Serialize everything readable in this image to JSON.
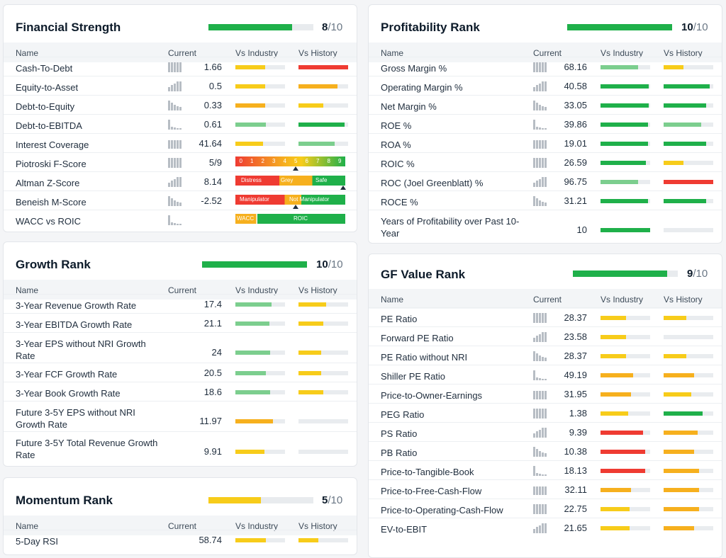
{
  "colors": {
    "green": "#1fb04a",
    "lightgreen": "#7cce8e",
    "yellow": "#f7cc1a",
    "orange": "#f6b01e",
    "red": "#ef3b32",
    "track": "#e9ecef"
  },
  "headers": {
    "name": "Name",
    "current": "Current",
    "vs_industry": "Vs Industry",
    "vs_history": "Vs History"
  },
  "financial": {
    "title": "Financial Strength",
    "score": "8",
    "denom": "/10",
    "rank_fraction": 0.8,
    "rows": [
      {
        "name": "Cash-To-Debt",
        "current": "1.66",
        "industry": 0.6,
        "industry_color": "yellow",
        "history": 1.0,
        "history_color": "red"
      },
      {
        "name": "Equity-to-Asset",
        "current": "0.5",
        "industry": 0.6,
        "industry_color": "yellow",
        "history": 0.78,
        "history_color": "orange"
      },
      {
        "name": "Debt-to-Equity",
        "current": "0.33",
        "industry": 0.6,
        "industry_color": "orange",
        "history": 0.5,
        "history_color": "yellow"
      },
      {
        "name": "Debt-to-EBITDA",
        "current": "0.61",
        "industry": 0.62,
        "industry_color": "lightgreen",
        "history": 0.93,
        "history_color": "green"
      },
      {
        "name": "Interest Coverage",
        "current": "41.64",
        "industry": 0.55,
        "industry_color": "yellow",
        "history": 0.73,
        "history_color": "lightgreen"
      },
      {
        "name": "Piotroski F-Score",
        "current": "5/9",
        "scale": [
          "0",
          "1",
          "2",
          "3",
          "4",
          "5",
          "6",
          "7",
          "8",
          "9"
        ],
        "marker": 0.55
      },
      {
        "name": "Altman Z-Score",
        "current": "8.14",
        "zones": [
          "Distress",
          "Grey",
          "Safe"
        ],
        "marker": 0.98
      },
      {
        "name": "Beneish M-Score",
        "current": "-2.52",
        "zones": [
          "Manipulator",
          "Not Manipulator"
        ],
        "marker": 0.55
      },
      {
        "name": "WACC vs ROIC",
        "current": "",
        "zones": [
          "WACC",
          "ROIC"
        ]
      }
    ]
  },
  "growth": {
    "title": "Growth Rank",
    "score": "10",
    "denom": "/10",
    "rank_fraction": 1.0,
    "rows": [
      {
        "name": "3-Year Revenue Growth Rate",
        "current": "17.4",
        "industry": 0.73,
        "industry_color": "lightgreen",
        "history": 0.55,
        "history_color": "yellow"
      },
      {
        "name": "3-Year EBITDA Growth Rate",
        "current": "21.1",
        "industry": 0.68,
        "industry_color": "lightgreen",
        "history": 0.5,
        "history_color": "yellow"
      },
      {
        "name": "3-Year EPS without NRI Growth Rate",
        "current": "24",
        "industry": 0.7,
        "industry_color": "lightgreen",
        "history": 0.45,
        "history_color": "yellow"
      },
      {
        "name": "3-Year FCF Growth Rate",
        "current": "20.5",
        "industry": 0.62,
        "industry_color": "lightgreen",
        "history": 0.45,
        "history_color": "yellow"
      },
      {
        "name": "3-Year Book Growth Rate",
        "current": "18.6",
        "industry": 0.7,
        "industry_color": "lightgreen",
        "history": 0.5,
        "history_color": "yellow"
      },
      {
        "name": "Future 3-5Y EPS without NRI Growth Rate",
        "current": "11.97",
        "industry": 0.75,
        "industry_color": "orange",
        "history": 0,
        "history_color": "yellow"
      },
      {
        "name": "Future 3-5Y Total Revenue Growth Rate",
        "current": "9.91",
        "industry": 0.58,
        "industry_color": "yellow",
        "history": 0,
        "history_color": "yellow"
      }
    ]
  },
  "momentum": {
    "title": "Momentum Rank",
    "score": "5",
    "denom": "/10",
    "rank_fraction": 0.5,
    "rows": [
      {
        "name": "5-Day RSI",
        "current": "58.74",
        "industry": 0.62,
        "industry_color": "yellow",
        "history": 0.4,
        "history_color": "yellow"
      }
    ]
  },
  "profitability": {
    "title": "Profitability Rank",
    "score": "10",
    "denom": "/10",
    "rank_fraction": 1.0,
    "rows": [
      {
        "name": "Gross Margin %",
        "current": "68.16",
        "industry": 0.75,
        "industry_color": "lightgreen",
        "history": 0.4,
        "history_color": "yellow"
      },
      {
        "name": "Operating Margin %",
        "current": "40.58",
        "industry": 0.97,
        "industry_color": "green",
        "history": 0.93,
        "history_color": "green"
      },
      {
        "name": "Net Margin %",
        "current": "33.05",
        "industry": 0.97,
        "industry_color": "green",
        "history": 0.86,
        "history_color": "green"
      },
      {
        "name": "ROE %",
        "current": "39.86",
        "industry": 0.95,
        "industry_color": "green",
        "history": 0.75,
        "history_color": "lightgreen"
      },
      {
        "name": "ROA %",
        "current": "19.01",
        "industry": 0.95,
        "industry_color": "green",
        "history": 0.86,
        "history_color": "green"
      },
      {
        "name": "ROIC %",
        "current": "26.59",
        "industry": 0.92,
        "industry_color": "green",
        "history": 0.4,
        "history_color": "yellow"
      },
      {
        "name": "ROC (Joel Greenblatt) %",
        "current": "96.75",
        "industry": 0.75,
        "industry_color": "lightgreen",
        "history": 1.0,
        "history_color": "red"
      },
      {
        "name": "ROCE %",
        "current": "31.21",
        "industry": 0.95,
        "industry_color": "green",
        "history": 0.86,
        "history_color": "green"
      },
      {
        "name": "Years of Profitability over Past 10-Year",
        "current": "10",
        "industry": 1.0,
        "industry_color": "green",
        "history": 0,
        "history_color": "yellow"
      }
    ]
  },
  "gfvalue": {
    "title": "GF Value Rank",
    "score": "9",
    "denom": "/10",
    "rank_fraction": 0.9,
    "rows": [
      {
        "name": "PE Ratio",
        "current": "28.37",
        "industry": 0.52,
        "industry_color": "yellow",
        "history": 0.45,
        "history_color": "yellow"
      },
      {
        "name": "Forward PE Ratio",
        "current": "23.58",
        "industry": 0.52,
        "industry_color": "yellow",
        "history": 0,
        "history_color": "yellow"
      },
      {
        "name": "PE Ratio without NRI",
        "current": "28.37",
        "industry": 0.52,
        "industry_color": "yellow",
        "history": 0.45,
        "history_color": "yellow"
      },
      {
        "name": "Shiller PE Ratio",
        "current": "49.19",
        "industry": 0.65,
        "industry_color": "orange",
        "history": 0.62,
        "history_color": "orange"
      },
      {
        "name": "Price-to-Owner-Earnings",
        "current": "31.95",
        "industry": 0.62,
        "industry_color": "orange",
        "history": 0.55,
        "history_color": "yellow"
      },
      {
        "name": "PEG Ratio",
        "current": "1.38",
        "industry": 0.55,
        "industry_color": "yellow",
        "history": 0.78,
        "history_color": "green"
      },
      {
        "name": "PS Ratio",
        "current": "9.39",
        "industry": 0.86,
        "industry_color": "red",
        "history": 0.68,
        "history_color": "orange"
      },
      {
        "name": "PB Ratio",
        "current": "10.38",
        "industry": 0.9,
        "industry_color": "red",
        "history": 0.62,
        "history_color": "orange"
      },
      {
        "name": "Price-to-Tangible-Book",
        "current": "18.13",
        "industry": 0.9,
        "industry_color": "red",
        "history": 0.72,
        "history_color": "orange"
      },
      {
        "name": "Price-to-Free-Cash-Flow",
        "current": "32.11",
        "industry": 0.62,
        "industry_color": "orange",
        "history": 0.72,
        "history_color": "orange"
      },
      {
        "name": "Price-to-Operating-Cash-Flow",
        "current": "22.75",
        "industry": 0.58,
        "industry_color": "yellow",
        "history": 0.72,
        "history_color": "orange"
      },
      {
        "name": "EV-to-EBIT",
        "current": "21.65",
        "industry": 0.58,
        "industry_color": "yellow",
        "history": 0.62,
        "history_color": "orange"
      }
    ]
  }
}
